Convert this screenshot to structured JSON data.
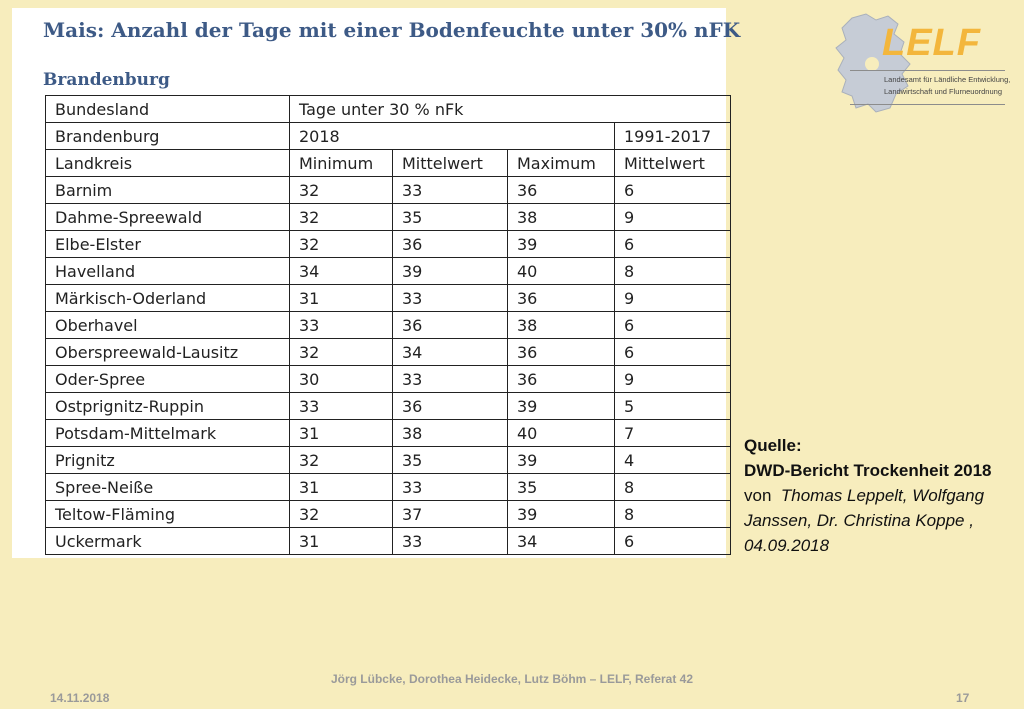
{
  "slide": {
    "title": "Mais: Anzahl der Tage mit einer Bodenfeuchte unter 30% nFK",
    "subtitle": "Brandenburg"
  },
  "table": {
    "header1": {
      "col1": "Bundesland",
      "col2": "Tage unter 30 % nFk"
    },
    "header2": {
      "col1": "Brandenburg",
      "year_current": "2018",
      "year_reference": "1991-2017"
    },
    "header3": [
      "Landkreis",
      "Minimum",
      "Mittelwert",
      "Maximum",
      "Mittelwert"
    ],
    "rows": [
      [
        "Barnim",
        "32",
        "33",
        "36",
        "6"
      ],
      [
        "Dahme-Spreewald",
        "32",
        "35",
        "38",
        "9"
      ],
      [
        "Elbe-Elster",
        "32",
        "36",
        "39",
        "6"
      ],
      [
        "Havelland",
        "34",
        "39",
        "40",
        "8"
      ],
      [
        "Märkisch-Oderland",
        "31",
        "33",
        "36",
        "9"
      ],
      [
        "Oberhavel",
        "33",
        "36",
        "38",
        "6"
      ],
      [
        "Oberspreewald-Lausitz",
        "32",
        "34",
        "36",
        "6"
      ],
      [
        "Oder-Spree",
        "30",
        "33",
        "36",
        "9"
      ],
      [
        "Ostprignitz-Ruppin",
        "33",
        "36",
        "39",
        "5"
      ],
      [
        "Potsdam-Mittelmark",
        "31",
        "38",
        "40",
        "7"
      ],
      [
        "Prignitz",
        "32",
        "35",
        "39",
        "4"
      ],
      [
        "Spree-Neiße",
        "31",
        "33",
        "35",
        "8"
      ],
      [
        "Teltow-Fläming",
        "32",
        "37",
        "39",
        "8"
      ],
      [
        "Uckermark",
        "31",
        "33",
        "34",
        "6"
      ]
    ]
  },
  "logo": {
    "name": "LELF",
    "line1": "Landesamt für Ländliche Entwicklung,",
    "line2": "Landwirtschaft und Flurneuordnung",
    "icon": "brandenburg-map-icon",
    "accent": "#f3b63c"
  },
  "source": {
    "label": "Quelle:",
    "report": "DWD-Bericht Trockenheit 2018",
    "by": "von",
    "authors": "Thomas Leppelt, Wolfgang Janssen, Dr. Christina Koppe ,",
    "date": "04.09.2018"
  },
  "footer": {
    "authors": "Jörg Lübcke, Dorothea Heidecke, Lutz Böhm  – LELF, Referat 42",
    "date": "14.11.2018",
    "page": "17"
  },
  "colors": {
    "background": "#f7edbd",
    "title": "#3d5a86"
  }
}
